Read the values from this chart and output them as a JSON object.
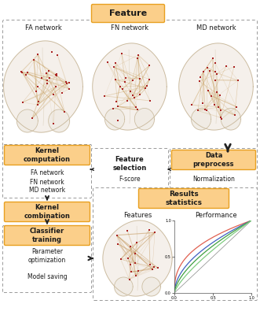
{
  "bg_color": "#ffffff",
  "orange_fill": "#FBCF8A",
  "orange_edge": "#E8A020",
  "dashed_color": "#999999",
  "text_dark": "#1a1a1a",
  "arrow_color": "#222222",
  "brain_fill": "#f5f0eb",
  "brain_edge": "#c8b89a",
  "node_color": "#aa2222",
  "line_color_fa": "#c8a060",
  "line_color_fn": "#c8a060",
  "line_color_md": "#c8a060",
  "roc_red": "#e06050",
  "roc_blue": "#4060c0",
  "roc_green1": "#40a040",
  "roc_green2": "#80cc80",
  "roc_gray": "#888888",
  "brain_networks": [
    "FA network",
    "FN network",
    "MD network"
  ],
  "kernel_items": [
    "FA network",
    "FN network",
    "MD network"
  ],
  "classifier_items": [
    "Parameter\noptimization",
    "Model saving"
  ]
}
